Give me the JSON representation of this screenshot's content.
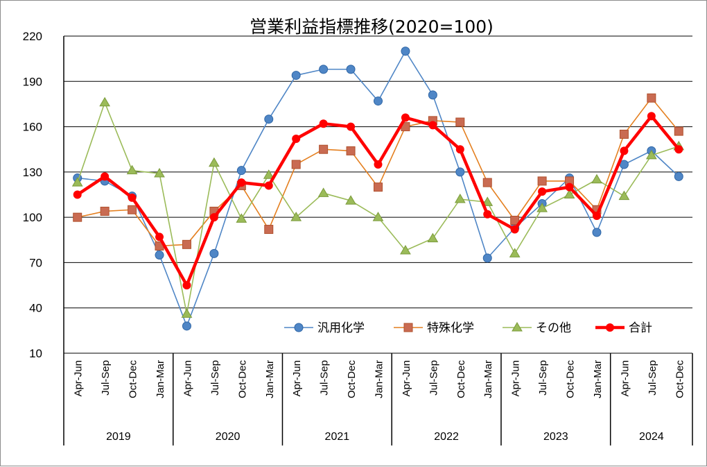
{
  "chart_data": {
    "type": "line",
    "title": "営業利益指標推移(2020=100)",
    "ylim": [
      10,
      220
    ],
    "yticks": [
      10,
      40,
      70,
      100,
      130,
      160,
      190,
      220
    ],
    "grid": "horizontal",
    "legend_position": "bottom-right",
    "categories": [
      "Apr-Jun",
      "Jul-Sep",
      "Oct-Dec",
      "Jan-Mar",
      "Apr-Jun",
      "Jul-Sep",
      "Oct-Dec",
      "Jan-Mar",
      "Apr-Jun",
      "Jul-Sep",
      "Oct-Dec",
      "Jan-Mar",
      "Apr-Jun",
      "Jul-Sep",
      "Oct-Dec",
      "Jan-Mar",
      "Apr-Jun",
      "Jul-Sep",
      "Oct-Dec",
      "Jan-Mar",
      "Apr-Jun",
      "Jul-Sep",
      "Oct-Dec"
    ],
    "year_groups": [
      {
        "label": "2019",
        "count": 4
      },
      {
        "label": "2020",
        "count": 4
      },
      {
        "label": "2021",
        "count": 4
      },
      {
        "label": "2022",
        "count": 4
      },
      {
        "label": "2023",
        "count": 4
      },
      {
        "label": "2024",
        "count": 3
      }
    ],
    "series": [
      {
        "name": "汎用化学",
        "color": "#4f86c6",
        "edge": "#2f66a6",
        "marker": "circle",
        "width": 1.6,
        "values": [
          126,
          124,
          114,
          75,
          28,
          76,
          131,
          165,
          194,
          198,
          198,
          177,
          210,
          181,
          130,
          73,
          93,
          109,
          126,
          90,
          135,
          144,
          127
        ]
      },
      {
        "name": "特殊化学",
        "color": "#e47f1f",
        "edge": "#b0502c",
        "fill": "#c96b52",
        "marker": "square",
        "width": 1.6,
        "values": [
          100,
          104,
          105,
          81,
          82,
          104,
          121,
          92,
          135,
          145,
          144,
          120,
          160,
          164,
          163,
          123,
          98,
          124,
          124,
          105,
          155,
          179,
          157
        ]
      },
      {
        "name": "その他",
        "color": "#9bbb59",
        "edge": "#7a9a3a",
        "marker": "triangle",
        "width": 1.6,
        "values": [
          123,
          176,
          131,
          129,
          36,
          136,
          99,
          128,
          100,
          116,
          111,
          100,
          78,
          86,
          112,
          110,
          76,
          106,
          115,
          125,
          114,
          141,
          147
        ]
      },
      {
        "name": "合計",
        "color": "#ff0000",
        "edge": "#ff0000",
        "marker": "dot",
        "width": 4.5,
        "values": [
          115,
          127,
          113,
          87,
          55,
          100,
          123,
          121,
          152,
          162,
          160,
          135,
          166,
          161,
          145,
          102,
          92,
          117,
          120,
          101,
          144,
          167,
          145
        ]
      }
    ]
  }
}
